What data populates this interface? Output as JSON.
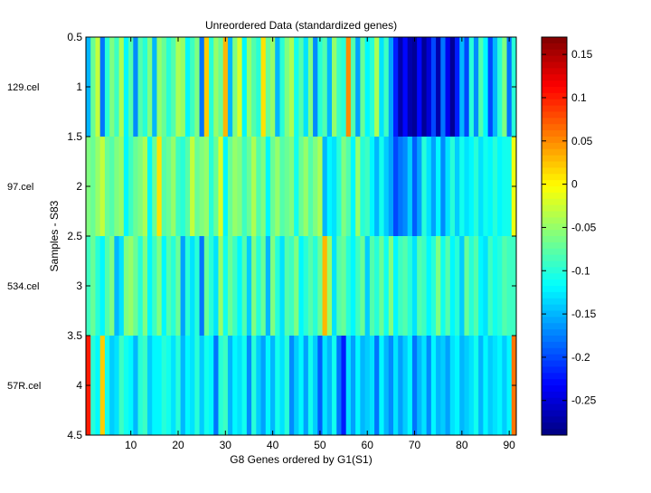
{
  "chart_data": {
    "type": "heatmap",
    "title": "Unreordered Data (standardized genes)",
    "xlabel": "G8 Genes ordered by G1(S1)",
    "ylabel": "Samples - S83",
    "xlim": [
      0.5,
      91.5
    ],
    "ylim": [
      0.5,
      4.5
    ],
    "x_ticks": [
      10,
      20,
      30,
      40,
      50,
      60,
      70,
      80,
      90
    ],
    "x_tick_labels": [
      "10",
      "20",
      "30",
      "40",
      "50",
      "60",
      "70",
      "80",
      "90"
    ],
    "y_ticks": [
      0.5,
      1,
      1.5,
      2,
      2.5,
      3,
      3.5,
      4,
      4.5
    ],
    "y_tick_labels": [
      "0.5",
      "1",
      "1.5",
      "2",
      "2.5",
      "3",
      "3.5",
      "4",
      "4.5"
    ],
    "row_labels": [
      "129.cel",
      "97.cel",
      "534.cel",
      "57R.cel"
    ],
    "colormap": "jet",
    "clim": [
      -0.29,
      0.17
    ],
    "colorbar_ticks": [
      0.15,
      0.1,
      0.05,
      0,
      -0.05,
      -0.1,
      -0.15,
      -0.2,
      -0.25
    ],
    "colorbar_tick_labels": [
      "0.15",
      "0.1",
      "0.05",
      "0",
      "-0.05",
      "-0.1",
      "-0.15",
      "-0.2",
      "-0.25"
    ],
    "values": [
      [
        -0.15,
        -0.07,
        -0.03,
        -0.18,
        -0.1,
        -0.06,
        -0.09,
        -0.04,
        -0.12,
        -0.08,
        -0.17,
        -0.08,
        -0.1,
        -0.06,
        -0.15,
        -0.05,
        -0.07,
        -0.1,
        -0.08,
        -0.04,
        -0.05,
        -0.12,
        -0.09,
        -0.06,
        -0.18,
        0.02,
        -0.1,
        -0.05,
        -0.07,
        0.03,
        -0.15,
        -0.06,
        -0.02,
        -0.12,
        -0.05,
        -0.08,
        -0.1,
        0.01,
        -0.07,
        -0.05,
        -0.15,
        -0.1,
        -0.06,
        -0.04,
        -0.11,
        -0.08,
        -0.13,
        -0.06,
        -0.17,
        -0.1,
        -0.08,
        -0.15,
        -0.05,
        -0.09,
        -0.1,
        0.05,
        -0.08,
        -0.16,
        -0.07,
        -0.12,
        -0.1,
        -0.04,
        -0.13,
        -0.09,
        -0.16,
        -0.22,
        -0.27,
        -0.23,
        -0.27,
        -0.28,
        -0.23,
        -0.28,
        -0.25,
        -0.2,
        -0.27,
        -0.18,
        -0.24,
        -0.28,
        -0.22,
        -0.15,
        -0.2,
        -0.1,
        -0.17,
        -0.08,
        -0.12,
        -0.2,
        -0.15,
        -0.1,
        -0.06,
        -0.18,
        -0.1
      ],
      [
        -0.06,
        -0.07,
        -0.05,
        -0.03,
        -0.07,
        -0.08,
        -0.06,
        -0.05,
        -0.12,
        -0.09,
        -0.07,
        -0.06,
        -0.04,
        -0.12,
        -0.07,
        0.01,
        -0.08,
        -0.07,
        -0.05,
        -0.09,
        -0.1,
        -0.08,
        -0.03,
        -0.07,
        -0.06,
        -0.05,
        -0.1,
        -0.07,
        -0.02,
        -0.12,
        -0.07,
        -0.05,
        -0.06,
        -0.09,
        -0.07,
        -0.04,
        -0.08,
        -0.06,
        -0.12,
        -0.07,
        -0.05,
        -0.08,
        -0.07,
        -0.06,
        -0.11,
        -0.07,
        -0.05,
        -0.08,
        -0.06,
        -0.04,
        -0.15,
        -0.12,
        -0.13,
        -0.1,
        -0.06,
        -0.08,
        -0.12,
        -0.05,
        -0.1,
        -0.09,
        -0.12,
        -0.15,
        -0.11,
        -0.14,
        -0.16,
        -0.2,
        -0.18,
        -0.17,
        -0.14,
        -0.19,
        -0.16,
        -0.1,
        -0.13,
        -0.16,
        -0.12,
        -0.17,
        -0.13,
        -0.1,
        -0.14,
        -0.11,
        -0.13,
        -0.12,
        -0.1,
        -0.13,
        -0.11,
        -0.12,
        -0.1,
        -0.12,
        -0.11,
        -0.11,
        -0.01
      ],
      [
        -0.09,
        -0.07,
        -0.1,
        -0.12,
        -0.08,
        -0.06,
        -0.15,
        -0.13,
        -0.06,
        -0.05,
        -0.07,
        -0.1,
        -0.06,
        -0.12,
        -0.09,
        -0.06,
        -0.12,
        -0.08,
        -0.1,
        -0.07,
        -0.16,
        -0.1,
        -0.13,
        -0.1,
        -0.18,
        -0.07,
        -0.1,
        -0.13,
        -0.05,
        -0.11,
        -0.07,
        -0.09,
        -0.12,
        -0.08,
        -0.14,
        -0.06,
        -0.1,
        -0.07,
        -0.15,
        -0.06,
        -0.1,
        -0.13,
        -0.08,
        -0.09,
        -0.06,
        -0.12,
        -0.1,
        -0.08,
        -0.1,
        -0.07,
        0.03,
        -0.05,
        -0.13,
        -0.08,
        -0.07,
        -0.1,
        -0.12,
        -0.09,
        -0.07,
        -0.14,
        -0.08,
        -0.1,
        -0.07,
        -0.11,
        -0.06,
        -0.12,
        -0.09,
        -0.08,
        -0.1,
        -0.13,
        -0.08,
        -0.09,
        -0.12,
        -0.1,
        -0.06,
        -0.11,
        -0.08,
        -0.12,
        -0.1,
        -0.14,
        -0.07,
        -0.1,
        -0.08,
        -0.12,
        -0.13,
        -0.09,
        -0.11,
        -0.1,
        -0.08,
        -0.09,
        -0.09
      ],
      [
        0.1,
        -0.1,
        -0.12,
        0.02,
        -0.11,
        -0.14,
        -0.13,
        -0.09,
        -0.11,
        -0.12,
        -0.15,
        -0.1,
        -0.09,
        -0.14,
        -0.12,
        -0.12,
        -0.1,
        -0.11,
        -0.13,
        -0.1,
        -0.15,
        -0.12,
        -0.13,
        -0.1,
        -0.14,
        -0.11,
        -0.12,
        -0.18,
        -0.1,
        -0.09,
        -0.15,
        -0.12,
        -0.13,
        -0.11,
        -0.17,
        -0.1,
        -0.14,
        -0.16,
        -0.12,
        -0.15,
        -0.11,
        -0.13,
        -0.1,
        -0.17,
        -0.14,
        -0.12,
        -0.16,
        -0.11,
        -0.14,
        -0.19,
        -0.13,
        -0.15,
        -0.11,
        -0.18,
        -0.22,
        -0.13,
        -0.16,
        -0.12,
        -0.15,
        -0.14,
        -0.13,
        -0.18,
        -0.12,
        -0.15,
        -0.17,
        -0.13,
        -0.16,
        -0.14,
        -0.12,
        -0.18,
        -0.15,
        -0.13,
        -0.17,
        -0.12,
        -0.15,
        -0.14,
        -0.16,
        -0.13,
        -0.12,
        -0.15,
        -0.14,
        -0.13,
        -0.11,
        -0.15,
        -0.12,
        -0.14,
        -0.13,
        -0.12,
        -0.14,
        -0.12,
        0.06
      ]
    ]
  }
}
